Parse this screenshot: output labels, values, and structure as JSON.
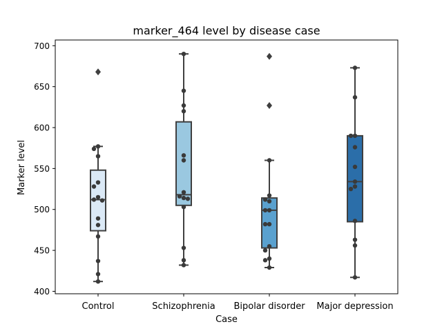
{
  "chart_data": {
    "type": "box",
    "title": "marker_464 level by disease case",
    "xlabel": "Case",
    "ylabel": "Marker level",
    "ylim": [
      397,
      707
    ],
    "yticks": [
      400,
      450,
      500,
      550,
      600,
      650,
      700
    ],
    "grid": false,
    "categories": [
      "Control",
      "Schizophrenia",
      "Bipolar disorder",
      "Major depression"
    ],
    "colors": [
      "#dbe9f6",
      "#9ac8e0",
      "#5aa1cf",
      "#2b6ea9"
    ],
    "boxes": [
      {
        "category": "Control",
        "q1": 474,
        "median": 512,
        "q3": 548,
        "whisker_low": 412,
        "whisker_high": 577,
        "outliers": [
          668
        ]
      },
      {
        "category": "Schizophrenia",
        "q1": 505,
        "median": 518,
        "q3": 607,
        "whisker_low": 432,
        "whisker_high": 690,
        "outliers": []
      },
      {
        "category": "Bipolar disorder",
        "q1": 453,
        "median": 499,
        "q3": 514,
        "whisker_low": 429,
        "whisker_high": 560,
        "outliers": [
          627,
          687
        ]
      },
      {
        "category": "Major depression",
        "q1": 485,
        "median": 534,
        "q3": 590,
        "whisker_low": 417,
        "whisker_high": 673,
        "outliers": []
      }
    ],
    "points": [
      [
        577,
        574,
        565,
        533,
        528,
        515,
        512,
        511,
        489,
        481,
        467,
        437,
        421,
        412
      ],
      [
        690,
        645,
        627,
        620,
        566,
        560,
        521,
        516,
        514,
        513,
        503,
        453,
        438,
        432
      ],
      [
        560,
        517,
        512,
        510,
        499,
        499,
        482,
        482,
        455,
        450,
        440,
        438,
        429
      ],
      [
        673,
        637,
        590,
        590,
        576,
        552,
        534,
        528,
        525,
        486,
        463,
        456,
        417
      ]
    ]
  }
}
